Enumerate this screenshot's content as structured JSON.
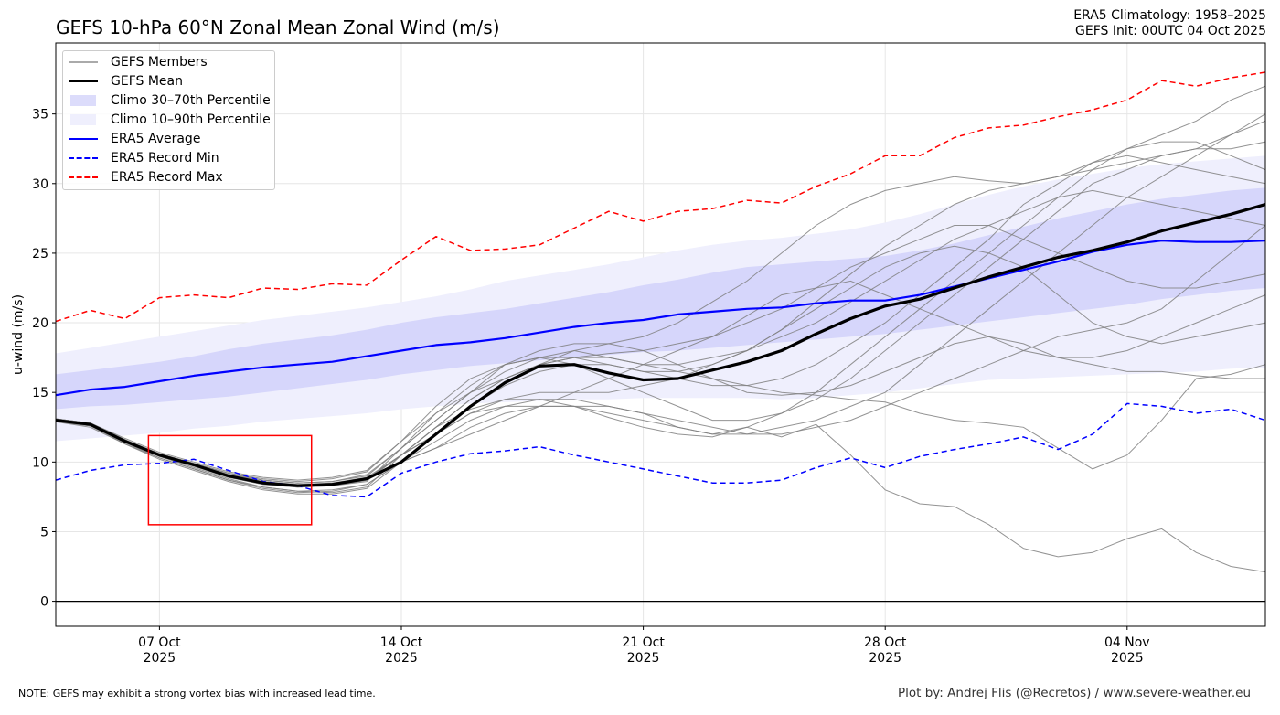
{
  "chart_data": {
    "type": "line",
    "title": "GEFS 10-hPa 60°N Zonal Mean Zonal Wind (m/s)",
    "subtitle_lines": [
      "ERA5 Climatology: 1958–2025",
      "GEFS Init: 00UTC 04 Oct 2025"
    ],
    "xlabel": "",
    "ylabel": "u-wind (m/s)",
    "x_start": "2025-10-04",
    "x_step_days": 1,
    "xlim": [
      "2025-10-04",
      "2025-11-08"
    ],
    "ylim": [
      -1.8,
      40.1
    ],
    "yticks": [
      0,
      5,
      10,
      15,
      20,
      25,
      30,
      35
    ],
    "xticks": [
      {
        "date": "2025-10-07",
        "label1": "07 Oct",
        "label2": "2025"
      },
      {
        "date": "2025-10-14",
        "label1": "14 Oct",
        "label2": "2025"
      },
      {
        "date": "2025-10-21",
        "label1": "21 Oct",
        "label2": "2025"
      },
      {
        "date": "2025-10-28",
        "label1": "28 Oct",
        "label2": "2025"
      },
      {
        "date": "2025-11-04",
        "label1": "04 Nov",
        "label2": "2025"
      }
    ],
    "grid": true,
    "zero_line": true,
    "legend_placement": "upper-left",
    "legend": [
      {
        "label": "GEFS Members",
        "style": "members"
      },
      {
        "label": "GEFS Mean",
        "style": "mean"
      },
      {
        "label": "Climo 30–70th Percentile",
        "style": "band3070"
      },
      {
        "label": "Climo 10–90th Percentile",
        "style": "band1090"
      },
      {
        "label": "ERA5 Average",
        "style": "avg"
      },
      {
        "label": "ERA5 Record Min",
        "style": "min"
      },
      {
        "label": "ERA5 Record Max",
        "style": "max"
      }
    ],
    "colors": {
      "members": "#808080",
      "mean": "#000000",
      "band3070": "#d6d6fb",
      "band1090": "#efeffd",
      "avg": "#0000ff",
      "min": "#0000ff",
      "max": "#ff0000",
      "annotation_box": "#ff0000"
    },
    "annotation_box": {
      "x": [
        "2025-10-07",
        "2025-10-11.4"
      ],
      "y": [
        5.5,
        11.9
      ]
    },
    "climo_10_90": {
      "lower": [
        11.5,
        11.7,
        11.9,
        12.1,
        12.4,
        12.6,
        12.9,
        13.1,
        13.3,
        13.5,
        13.8,
        14.0,
        14.2,
        14.3,
        14.4,
        14.5,
        14.5,
        14.6,
        14.6,
        14.6,
        14.6,
        14.5,
        14.6,
        14.8,
        15.0,
        15.3,
        15.6,
        15.9,
        16.0,
        16.1,
        16.2,
        16.3,
        16.4,
        16.5,
        16.7,
        16.8
      ],
      "upper": [
        17.8,
        18.2,
        18.6,
        19.0,
        19.4,
        19.8,
        20.2,
        20.5,
        20.8,
        21.1,
        21.5,
        21.9,
        22.4,
        23.0,
        23.4,
        23.8,
        24.2,
        24.7,
        25.2,
        25.6,
        25.9,
        26.1,
        26.4,
        26.7,
        27.2,
        27.8,
        28.5,
        29.2,
        29.8,
        30.3,
        30.7,
        31.1,
        31.4,
        31.6,
        31.8,
        32.0
      ]
    },
    "climo_30_70": {
      "lower": [
        13.8,
        14.0,
        14.1,
        14.3,
        14.5,
        14.7,
        15.0,
        15.3,
        15.6,
        15.9,
        16.3,
        16.6,
        16.9,
        17.1,
        17.3,
        17.5,
        17.7,
        17.9,
        18.0,
        18.2,
        18.4,
        18.6,
        18.8,
        19.0,
        19.2,
        19.5,
        19.8,
        20.1,
        20.4,
        20.7,
        21.0,
        21.3,
        21.7,
        22.0,
        22.3,
        22.5
      ],
      "upper": [
        16.3,
        16.6,
        16.9,
        17.2,
        17.6,
        18.1,
        18.5,
        18.8,
        19.1,
        19.5,
        20.0,
        20.4,
        20.7,
        21.0,
        21.4,
        21.8,
        22.2,
        22.7,
        23.1,
        23.6,
        24.0,
        24.2,
        24.4,
        24.6,
        24.8,
        25.2,
        25.7,
        26.3,
        26.9,
        27.5,
        28.0,
        28.5,
        28.9,
        29.2,
        29.5,
        29.7
      ]
    },
    "series": [
      {
        "name": "ERA5 Average",
        "style": "avg",
        "values": [
          14.8,
          15.2,
          15.4,
          15.8,
          16.2,
          16.5,
          16.8,
          17.0,
          17.2,
          17.6,
          18.0,
          18.4,
          18.6,
          18.9,
          19.3,
          19.7,
          20.0,
          20.2,
          20.6,
          20.8,
          21.0,
          21.1,
          21.4,
          21.6,
          21.6,
          22.0,
          22.6,
          23.2,
          23.8,
          24.4,
          25.1,
          25.6,
          25.9,
          25.8,
          25.8,
          25.9
        ]
      },
      {
        "name": "ERA5 Record Min",
        "style": "min",
        "values": [
          8.7,
          9.4,
          9.8,
          9.9,
          10.2,
          9.4,
          8.6,
          8.3,
          7.6,
          7.5,
          9.2,
          10.0,
          10.6,
          10.8,
          11.1,
          10.5,
          10.0,
          9.5,
          9.0,
          8.5,
          8.5,
          8.7,
          9.6,
          10.3,
          9.6,
          10.4,
          10.9,
          11.3,
          11.8,
          10.9,
          12.0,
          14.2,
          14.0,
          13.5,
          13.8,
          13.0
        ]
      },
      {
        "name": "ERA5 Record Max",
        "style": "max",
        "values": [
          20.1,
          20.9,
          20.3,
          21.8,
          22.0,
          21.8,
          22.5,
          22.4,
          22.8,
          22.7,
          24.5,
          26.2,
          25.2,
          25.3,
          25.6,
          26.8,
          28.0,
          27.3,
          28.0,
          28.2,
          28.8,
          28.6,
          29.8,
          30.7,
          32.0,
          32.0,
          33.3,
          34.0,
          34.2,
          34.8,
          35.3,
          36.0,
          37.4,
          37.0,
          37.6,
          38.0
        ]
      },
      {
        "name": "GEFS Mean",
        "style": "mean",
        "values": [
          13.0,
          12.7,
          11.5,
          10.5,
          9.8,
          9.0,
          8.5,
          8.3,
          8.4,
          8.8,
          10.0,
          12.0,
          14.0,
          15.7,
          16.9,
          17.0,
          16.4,
          15.9,
          16.0,
          16.6,
          17.2,
          18.0,
          19.2,
          20.3,
          21.2,
          21.7,
          22.5,
          23.3,
          24.0,
          24.7,
          25.2,
          25.8,
          26.6,
          27.2,
          27.8,
          28.5
        ]
      }
    ],
    "members": [
      [
        13.0,
        12.6,
        11.4,
        10.4,
        9.6,
        8.8,
        8.2,
        7.9,
        7.8,
        8.2,
        10.5,
        12.5,
        13.8,
        14.5,
        14.5,
        14.0,
        13.2,
        12.5,
        12.0,
        11.8,
        12.5,
        11.8,
        12.7,
        10.5,
        8.0,
        7.0,
        6.8,
        5.5,
        3.8,
        3.2,
        3.5,
        4.5,
        5.2,
        3.5,
        2.5,
        2.1
      ],
      [
        13.1,
        12.8,
        11.6,
        10.6,
        9.9,
        9.1,
        8.6,
        8.3,
        8.3,
        8.6,
        11.0,
        13.0,
        15.0,
        16.5,
        17.5,
        18.0,
        17.5,
        17.0,
        16.5,
        16.0,
        15.5,
        15.0,
        14.8,
        14.5,
        14.3,
        13.5,
        13.0,
        12.8,
        12.5,
        11.0,
        9.5,
        10.5,
        13.0,
        16.0,
        16.3,
        17.0
      ],
      [
        13.0,
        12.7,
        11.5,
        10.5,
        9.8,
        9.0,
        8.6,
        8.4,
        8.5,
        8.9,
        10.5,
        12.5,
        14.5,
        16.0,
        17.0,
        18.0,
        18.5,
        19.0,
        20.0,
        21.5,
        23.0,
        25.0,
        27.0,
        28.5,
        29.5,
        30.0,
        30.5,
        30.2,
        30.0,
        30.5,
        31.5,
        32.5,
        33.5,
        34.5,
        36.0,
        37.0
      ],
      [
        12.9,
        12.6,
        11.5,
        10.6,
        9.9,
        9.2,
        8.7,
        8.5,
        8.6,
        9.0,
        11.0,
        13.5,
        15.5,
        17.0,
        17.5,
        17.0,
        16.0,
        15.0,
        14.0,
        13.0,
        13.0,
        13.5,
        14.5,
        16.0,
        18.0,
        20.0,
        22.0,
        24.0,
        26.0,
        28.0,
        30.0,
        31.0,
        32.0,
        32.5,
        33.5,
        35.0
      ],
      [
        13.0,
        12.7,
        11.4,
        10.3,
        9.5,
        8.7,
        8.1,
        7.8,
        7.9,
        8.4,
        10.0,
        11.0,
        12.0,
        13.0,
        14.0,
        15.0,
        16.0,
        17.0,
        18.0,
        19.0,
        20.0,
        21.0,
        22.5,
        24.0,
        25.0,
        26.0,
        27.0,
        27.0,
        26.0,
        25.0,
        24.0,
        23.0,
        22.5,
        22.5,
        23.0,
        23.5
      ],
      [
        13.1,
        12.8,
        11.6,
        10.5,
        9.7,
        8.9,
        8.4,
        8.2,
        8.3,
        8.7,
        10.5,
        12.0,
        13.5,
        14.0,
        14.0,
        14.0,
        14.0,
        13.5,
        12.5,
        12.0,
        12.5,
        13.5,
        15.0,
        17.0,
        19.0,
        21.0,
        23.0,
        25.0,
        27.0,
        29.0,
        31.0,
        32.5,
        33.0,
        33.0,
        32.0,
        31.0
      ],
      [
        13.0,
        12.7,
        11.6,
        10.6,
        9.9,
        9.2,
        8.8,
        8.6,
        8.8,
        9.3,
        11.5,
        13.5,
        15.0,
        16.0,
        17.0,
        17.5,
        17.8,
        18.0,
        18.5,
        19.0,
        20.5,
        22.0,
        22.5,
        23.0,
        22.0,
        21.0,
        20.0,
        19.0,
        18.0,
        17.5,
        17.5,
        18.0,
        19.0,
        20.0,
        21.0,
        22.0
      ],
      [
        12.9,
        12.6,
        11.4,
        10.4,
        9.7,
        8.9,
        8.4,
        8.2,
        8.3,
        8.7,
        10.5,
        12.0,
        14.0,
        15.5,
        16.5,
        17.0,
        17.0,
        16.5,
        16.0,
        15.5,
        15.5,
        16.0,
        17.0,
        18.5,
        20.0,
        22.0,
        24.0,
        26.0,
        28.5,
        30.0,
        31.5,
        32.0,
        31.5,
        31.0,
        30.5,
        30.0
      ],
      [
        13.0,
        12.6,
        11.3,
        10.2,
        9.4,
        8.6,
        8.0,
        7.7,
        7.7,
        8.1,
        10.0,
        11.5,
        13.0,
        14.0,
        14.5,
        14.5,
        14.0,
        13.5,
        13.0,
        12.5,
        12.0,
        12.0,
        12.5,
        13.0,
        14.0,
        15.0,
        16.0,
        17.0,
        18.0,
        19.0,
        19.5,
        20.0,
        21.0,
        23.0,
        25.0,
        27.0
      ],
      [
        13.1,
        12.8,
        11.6,
        10.6,
        9.9,
        9.1,
        8.7,
        8.5,
        8.6,
        9.1,
        11.0,
        13.0,
        15.0,
        17.0,
        18.0,
        18.5,
        18.5,
        18.0,
        17.0,
        16.0,
        15.0,
        14.8,
        15.0,
        15.5,
        16.5,
        17.5,
        18.5,
        19.0,
        18.5,
        17.5,
        17.0,
        16.5,
        16.5,
        16.2,
        16.0,
        16.0
      ],
      [
        13.0,
        12.7,
        11.5,
        10.5,
        9.8,
        9.0,
        8.5,
        8.3,
        8.4,
        8.8,
        10.5,
        12.5,
        14.5,
        16.0,
        17.0,
        17.5,
        17.5,
        17.0,
        17.0,
        17.5,
        18.0,
        19.0,
        20.0,
        21.5,
        23.0,
        24.5,
        26.0,
        27.0,
        28.0,
        29.0,
        29.5,
        29.0,
        28.5,
        28.0,
        27.5,
        27.0
      ],
      [
        12.9,
        12.5,
        11.3,
        10.3,
        9.5,
        8.7,
        8.2,
        7.9,
        8.0,
        8.4,
        10.0,
        11.0,
        12.5,
        13.5,
        14.0,
        14.0,
        13.5,
        13.0,
        12.5,
        12.0,
        12.0,
        12.5,
        13.0,
        14.0,
        15.0,
        17.0,
        19.0,
        21.0,
        23.0,
        25.0,
        27.0,
        29.0,
        30.5,
        32.0,
        33.5,
        34.5
      ],
      [
        13.1,
        12.8,
        11.7,
        10.7,
        10.0,
        9.3,
        8.9,
        8.7,
        8.9,
        9.4,
        11.5,
        14.0,
        16.0,
        17.0,
        17.5,
        17.5,
        17.0,
        16.5,
        16.5,
        17.0,
        18.0,
        19.5,
        21.0,
        22.5,
        24.0,
        25.0,
        25.5,
        25.0,
        24.0,
        22.0,
        20.0,
        19.0,
        18.5,
        19.0,
        19.5,
        20.0
      ],
      [
        13.0,
        12.7,
        11.5,
        10.5,
        9.8,
        9.0,
        8.5,
        8.3,
        8.4,
        8.8,
        10.5,
        12.0,
        13.5,
        14.5,
        15.0,
        15.0,
        15.0,
        15.5,
        16.0,
        17.0,
        18.0,
        19.5,
        21.5,
        23.5,
        25.5,
        27.0,
        28.5,
        29.5,
        30.0,
        30.5,
        31.0,
        31.5,
        32.0,
        32.5,
        32.5,
        33.0
      ]
    ]
  },
  "footer": {
    "note": "NOTE: GEFS may exhibit a strong vortex bias with increased lead time.",
    "credit": "Plot by: Andrej Flis (@Recretos) / www.severe-weather.eu"
  }
}
